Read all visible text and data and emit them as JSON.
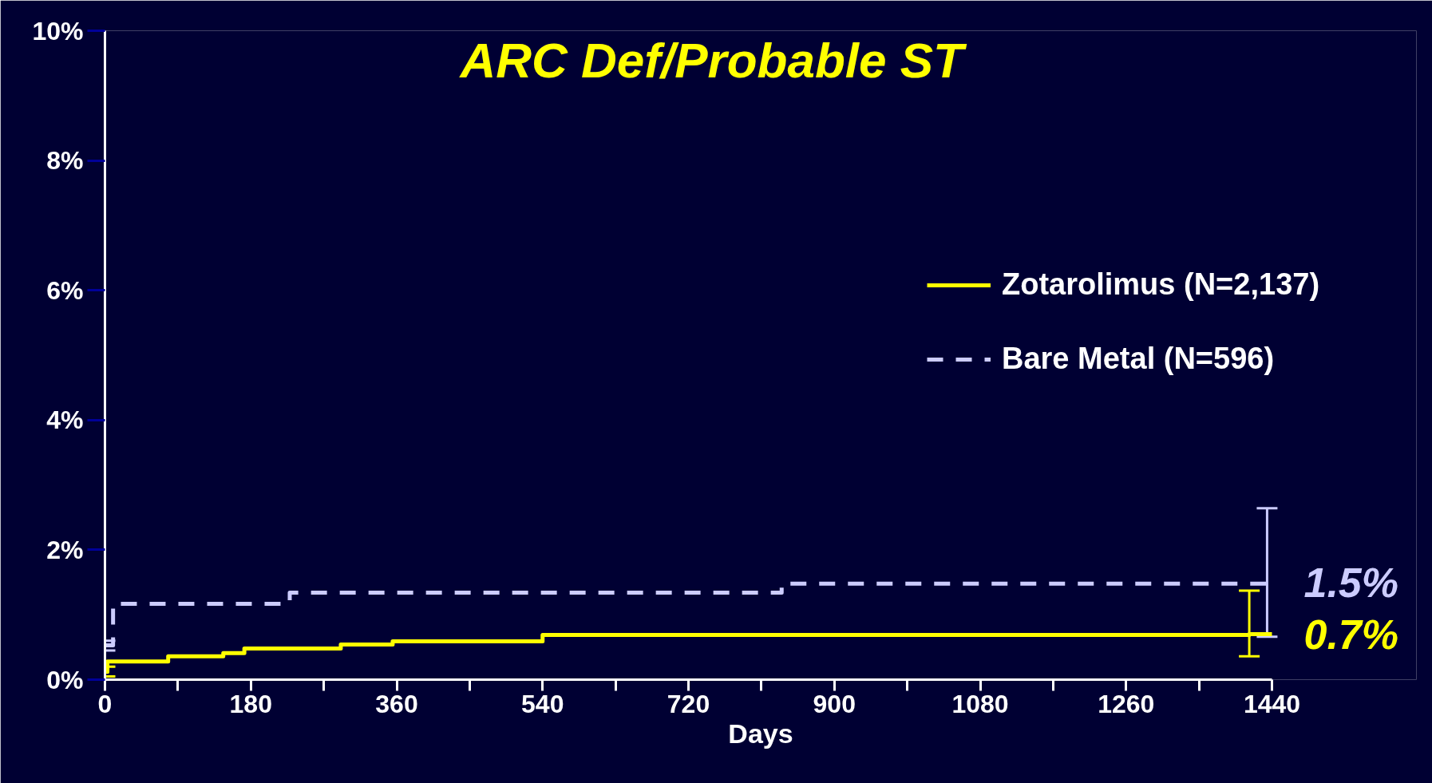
{
  "chart_data": {
    "type": "step",
    "title": "ARC Def/Probable ST",
    "xlabel": "Days",
    "xlim": [
      0,
      1440
    ],
    "ylim": [
      0,
      10
    ],
    "xticks": [
      0,
      {
        "value": 90,
        "label": null
      },
      180,
      {
        "value": 270,
        "label": null
      },
      360,
      {
        "value": 450,
        "label": null
      },
      540,
      {
        "value": 630,
        "label": null
      },
      720,
      {
        "value": 810,
        "label": null
      },
      900,
      {
        "value": 990,
        "label": null
      },
      1080,
      {
        "value": 1170,
        "label": null
      },
      1260,
      {
        "value": 1350,
        "label": null
      },
      1440
    ],
    "yticks": [
      {
        "value": 0,
        "label": "0%"
      },
      {
        "value": 2,
        "label": "2%"
      },
      {
        "value": 4,
        "label": "4%"
      },
      {
        "value": 6,
        "label": "6%"
      },
      {
        "value": 8,
        "label": "8%"
      },
      {
        "value": 10,
        "label": "10%"
      }
    ],
    "grid": false,
    "legend": "right",
    "series": [
      {
        "name": "Zotarolimus (N=2,137)",
        "color": "#ffff00",
        "line_style": "solid",
        "x": [
          0,
          3,
          78,
          146,
          172,
          291,
          355,
          540,
          1412,
          1440
        ],
        "values": [
          0.12,
          0.28,
          0.36,
          0.41,
          0.48,
          0.54,
          0.59,
          0.69,
          0.7,
          0.7
        ],
        "errors": [
          [
            0.05,
            0.2
          ],
          null,
          null,
          null,
          null,
          null,
          null,
          null,
          [
            0.36,
            1.37
          ],
          null
        ],
        "value_labels": [
          null,
          null,
          null,
          null,
          null,
          null,
          null,
          null,
          null,
          "0.7%"
        ]
      },
      {
        "name": "Bare Metal (N=596)",
        "color": "#ccccff",
        "line_style": "dashed",
        "x": [
          0,
          10,
          228,
          835,
          1434,
          1440
        ],
        "values": [
          0.53,
          1.17,
          1.34,
          1.48,
          1.5,
          1.5
        ],
        "errors": [
          [
            0.45,
            0.6
          ],
          null,
          null,
          null,
          [
            0.66,
            2.64
          ],
          null
        ],
        "value_labels": [
          null,
          null,
          null,
          null,
          null,
          "1.5%"
        ]
      }
    ]
  }
}
